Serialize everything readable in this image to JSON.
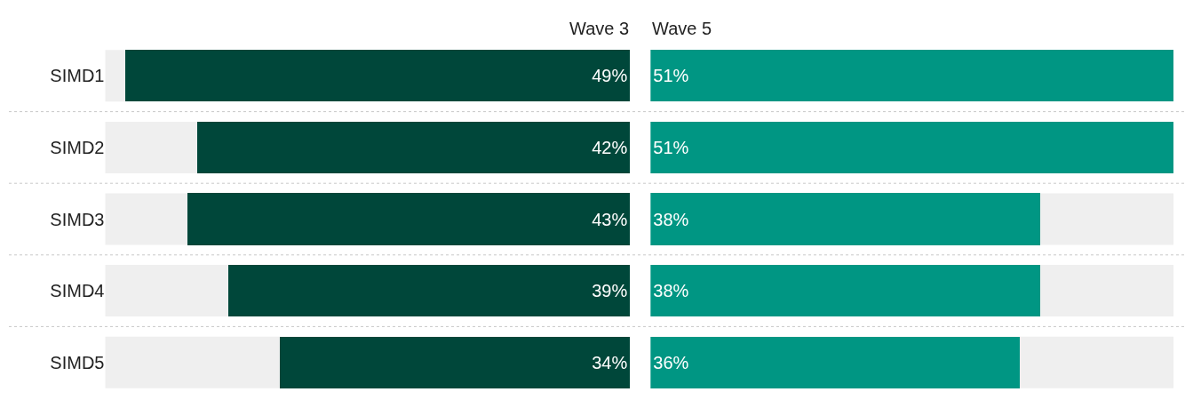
{
  "chart_data": [
    {
      "type": "bar",
      "orientation": "horizontal",
      "title": "Wave 3",
      "categories": [
        "SIMD1",
        "SIMD2",
        "SIMD3",
        "SIMD4",
        "SIMD5"
      ],
      "values": [
        49,
        42,
        43,
        39,
        34
      ],
      "value_labels": [
        "49%",
        "42%",
        "43%",
        "39%",
        "34%"
      ],
      "color": "#00473a",
      "tick_labels": "y"
    },
    {
      "type": "bar",
      "orientation": "horizontal",
      "title": "Wave 5",
      "categories": [
        "SIMD1",
        "SIMD2",
        "SIMD3",
        "SIMD4",
        "SIMD5"
      ],
      "values": [
        51,
        51,
        38,
        38,
        36
      ],
      "value_labels": [
        "51%",
        "51%",
        "38%",
        "38%",
        "36%"
      ],
      "color": "#009683",
      "tick_labels": false
    }
  ]
}
